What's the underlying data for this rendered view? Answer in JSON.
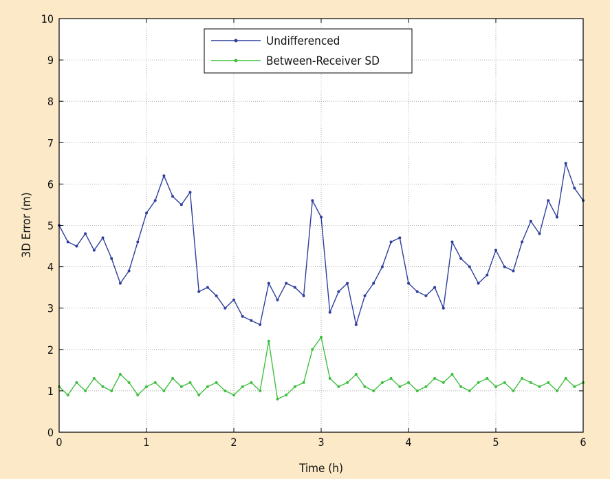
{
  "chart_data": {
    "type": "line",
    "title": "",
    "xlabel": "Time (h)",
    "ylabel": "3D Error (m)",
    "xlim": [
      0,
      6
    ],
    "ylim": [
      0,
      10
    ],
    "xticks": [
      0,
      1,
      2,
      3,
      4,
      5,
      6
    ],
    "yticks": [
      0,
      1,
      2,
      3,
      4,
      5,
      6,
      7,
      8,
      9,
      10
    ],
    "grid": true,
    "legend": "top-center",
    "series": [
      {
        "name": "Undifferenced",
        "color": "#2e3e9c",
        "marker": "dot",
        "x": [
          0,
          0.1,
          0.2,
          0.3,
          0.4,
          0.5,
          0.6,
          0.7,
          0.8,
          0.9,
          1.0,
          1.1,
          1.2,
          1.3,
          1.4,
          1.5,
          1.6,
          1.7,
          1.8,
          1.9,
          2.0,
          2.1,
          2.2,
          2.3,
          2.4,
          2.5,
          2.6,
          2.7,
          2.8,
          2.9,
          3.0,
          3.1,
          3.2,
          3.3,
          3.4,
          3.5,
          3.6,
          3.7,
          3.8,
          3.9,
          4.0,
          4.1,
          4.2,
          4.3,
          4.4,
          4.5,
          4.6,
          4.7,
          4.8,
          4.9,
          5.0,
          5.1,
          5.2,
          5.3,
          5.4,
          5.5,
          5.6,
          5.7,
          5.8,
          5.9,
          6.0
        ],
        "y": [
          5.0,
          4.6,
          4.5,
          4.8,
          4.4,
          4.7,
          4.2,
          3.6,
          3.9,
          4.6,
          5.3,
          5.6,
          6.2,
          5.7,
          5.5,
          5.8,
          3.4,
          3.5,
          3.3,
          3.0,
          3.2,
          2.8,
          2.7,
          2.6,
          3.6,
          3.2,
          3.6,
          3.5,
          3.3,
          5.6,
          5.2,
          2.9,
          3.4,
          3.6,
          2.6,
          3.3,
          3.6,
          4.0,
          4.6,
          4.7,
          3.6,
          3.4,
          3.3,
          3.5,
          3.0,
          4.6,
          4.2,
          4.0,
          3.6,
          3.8,
          4.4,
          4.0,
          3.9,
          4.6,
          5.1,
          4.8,
          5.6,
          5.2,
          6.5,
          5.9,
          5.6
        ]
      },
      {
        "name": "Between-Receiver SD",
        "color": "#3fbf3f",
        "marker": "dot",
        "x": [
          0,
          0.1,
          0.2,
          0.3,
          0.4,
          0.5,
          0.6,
          0.7,
          0.8,
          0.9,
          1.0,
          1.1,
          1.2,
          1.3,
          1.4,
          1.5,
          1.6,
          1.7,
          1.8,
          1.9,
          2.0,
          2.1,
          2.2,
          2.3,
          2.4,
          2.5,
          2.6,
          2.7,
          2.8,
          2.9,
          3.0,
          3.1,
          3.2,
          3.3,
          3.4,
          3.5,
          3.6,
          3.7,
          3.8,
          3.9,
          4.0,
          4.1,
          4.2,
          4.3,
          4.4,
          4.5,
          4.6,
          4.7,
          4.8,
          4.9,
          5.0,
          5.1,
          5.2,
          5.3,
          5.4,
          5.5,
          5.6,
          5.7,
          5.8,
          5.9,
          6.0
        ],
        "y": [
          1.1,
          0.9,
          1.2,
          1.0,
          1.3,
          1.1,
          1.0,
          1.4,
          1.2,
          0.9,
          1.1,
          1.2,
          1.0,
          1.3,
          1.1,
          1.2,
          0.9,
          1.1,
          1.2,
          1.0,
          0.9,
          1.1,
          1.2,
          1.0,
          2.2,
          0.8,
          0.9,
          1.1,
          1.2,
          2.0,
          2.3,
          1.3,
          1.1,
          1.2,
          1.4,
          1.1,
          1.0,
          1.2,
          1.3,
          1.1,
          1.2,
          1.0,
          1.1,
          1.3,
          1.2,
          1.4,
          1.1,
          1.0,
          1.2,
          1.3,
          1.1,
          1.2,
          1.0,
          1.3,
          1.2,
          1.1,
          1.2,
          1.0,
          1.3,
          1.1,
          1.2
        ]
      }
    ]
  }
}
